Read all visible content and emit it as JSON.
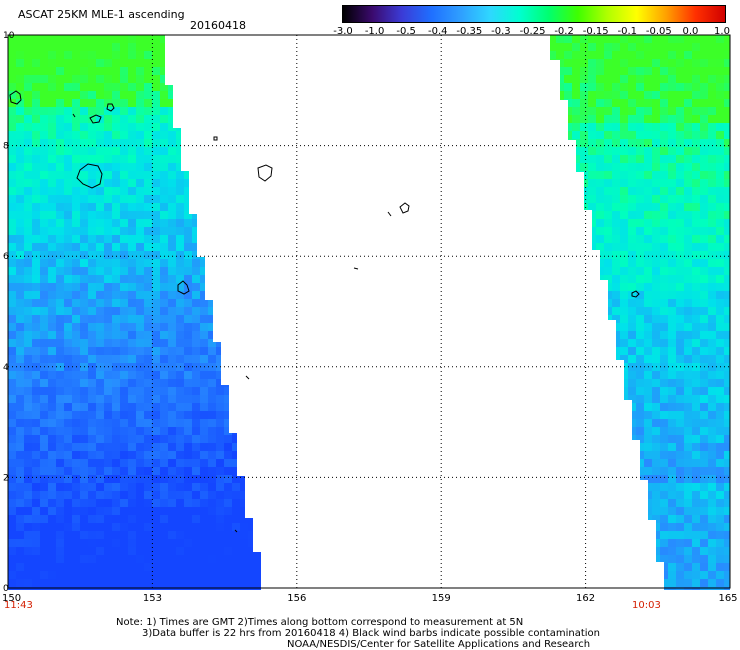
{
  "header": {
    "title": "ASCAT 25KM MLE-1 ascending",
    "date": "20160418"
  },
  "colorbar": {
    "labels": [
      "-3.0",
      "-1.0",
      "-0.5",
      "-0.4",
      "-0.35",
      "-0.3",
      "-0.25",
      "-0.2",
      "-0.15",
      "-0.1",
      "-0.05",
      "0.0",
      "1.0"
    ],
    "colors": [
      "#000000",
      "#3b0a6e",
      "#3b3bd6",
      "#1f6fff",
      "#2f9fff",
      "#2fd7ff",
      "#00ffd0",
      "#00ff70",
      "#3fff00",
      "#b0ff00",
      "#ffff00",
      "#ffa000",
      "#ff3000",
      "#d00000"
    ]
  },
  "map": {
    "x_ticks": [
      "150",
      "153",
      "156",
      "159",
      "162",
      "165"
    ],
    "y_ticks": [
      "10",
      "8",
      "6",
      "4",
      "2",
      "0"
    ],
    "x_range": [
      150,
      165
    ],
    "y_range": [
      0,
      10
    ]
  },
  "times": {
    "left": "11:43",
    "right": "10:03"
  },
  "notes": {
    "line1": "Note: 1) Times are GMT 2)Times along bottom correspond to measurement at 5N",
    "line2": "3)Data buffer is 22 hrs from 20160418 4) Black wind barbs indicate possible contamination",
    "line3": "NOAA/NESDIS/Center for Satellite Applications and Research"
  }
}
